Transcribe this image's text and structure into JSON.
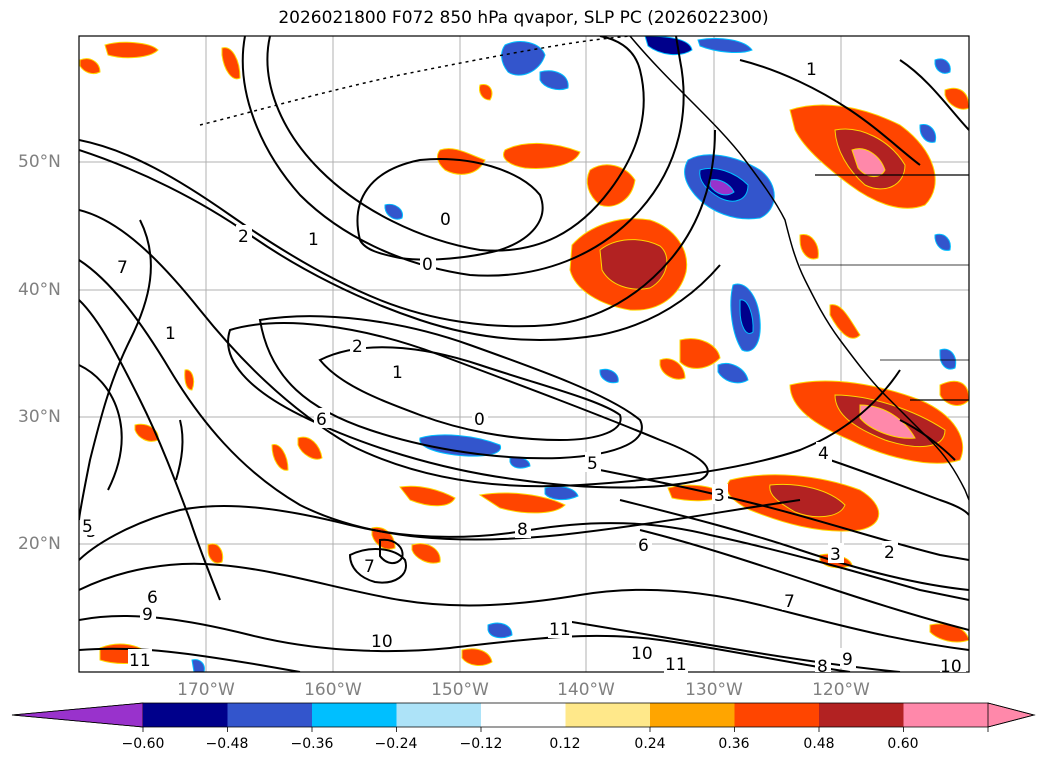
{
  "title": "2026021800 F072 850 hPa qvapor, SLP PC (2026022300)",
  "lat_labels": [
    "50°N",
    "40°N",
    "30°N",
    "20°N"
  ],
  "lon_labels": [
    "170°W",
    "160°W",
    "150°W",
    "140°W",
    "130°W",
    "120°W"
  ],
  "colorbar": {
    "ticks": [
      "−0.60",
      "−0.48",
      "−0.36",
      "−0.24",
      "−0.12",
      "0.12",
      "0.24",
      "0.36",
      "0.48",
      "0.60"
    ],
    "colors": [
      "#9932CC",
      "#00008B",
      "#3355CC",
      "#00BFFF",
      "#ADE3F8",
      "#FFFFFF",
      "#FFE88A",
      "#FFA500",
      "#FF4500",
      "#B22222",
      "#FF88AA",
      "#FF88AA"
    ]
  },
  "contour_labels": [
    "0",
    "0",
    "1",
    "2",
    "1",
    "2",
    "1",
    "0",
    "7",
    "6",
    "5",
    "8",
    "6",
    "7",
    "6",
    "5",
    "4",
    "3",
    "2",
    "3",
    "11",
    "10",
    "11",
    "10",
    "11",
    "9",
    "8",
    "9",
    "10",
    "7",
    "1",
    "5"
  ]
}
